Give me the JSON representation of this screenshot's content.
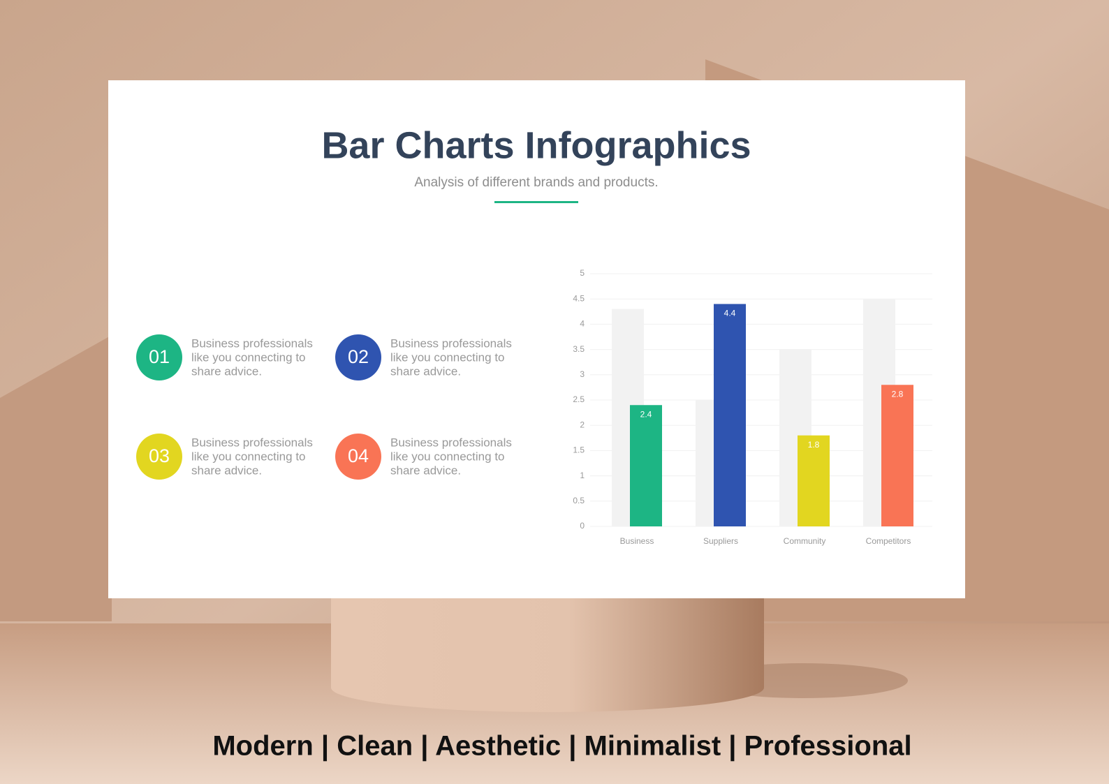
{
  "title": "Bar Charts Infographics",
  "subtitle": "Analysis of different brands and products.",
  "items": [
    {
      "number": "01",
      "color": "#1db584",
      "lines": [
        "Business professionals",
        "like you connecting to",
        "share advice."
      ]
    },
    {
      "number": "02",
      "color": "#2f54b0",
      "lines": [
        "Business professionals",
        "like you connecting to",
        "share advice."
      ]
    },
    {
      "number": "03",
      "color": "#e2d620",
      "lines": [
        "Business professionals",
        "like you connecting to",
        "share advice."
      ]
    },
    {
      "number": "04",
      "color": "#f97455",
      "lines": [
        "Business professionals",
        "like you connecting to",
        "share advice."
      ]
    }
  ],
  "chart_data": {
    "type": "bar",
    "categories": [
      "Business",
      "Suppliers",
      "Community",
      "Competitors"
    ],
    "series": [
      {
        "color": "#f2f2f2",
        "values": [
          4.3,
          2.5,
          3.5,
          4.5
        ]
      },
      {
        "colors": [
          "#1db584",
          "#2f54b0",
          "#e2d620",
          "#f97455"
        ],
        "values": [
          2.4,
          4.4,
          1.8,
          2.8
        ]
      }
    ],
    "ylim": [
      0,
      5
    ],
    "yticks": [
      0,
      0.5,
      1,
      1.5,
      2,
      2.5,
      3,
      3.5,
      4,
      4.5,
      5
    ],
    "grid": true
  },
  "tagline": "Modern | Clean | Aesthetic | Minimalist | Professional"
}
